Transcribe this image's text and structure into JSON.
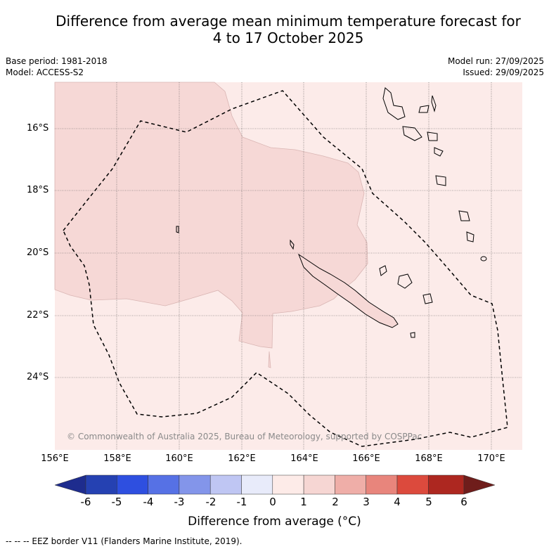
{
  "title_line1": "Difference from average mean minimum temperature forecast for",
  "title_line2": "4 to 17 October 2025",
  "meta": {
    "base_period": "Base period: 1981-2018",
    "model": "Model: ACCESS-S2",
    "model_run": "Model run: 27/09/2025",
    "issued": "Issued: 29/09/2025"
  },
  "map": {
    "y_ticks": [
      "16°S",
      "18°S",
      "20°S",
      "22°S",
      "24°S"
    ],
    "x_ticks": [
      "156°E",
      "158°E",
      "160°E",
      "162°E",
      "164°E",
      "166°E",
      "168°E",
      "170°E"
    ],
    "copyright": "© Commonwealth of Australia 2025, Bureau of Meteorology, supported by COSPPac",
    "colors": {
      "band_0_1": "#fcebe9",
      "band_1_2": "#f6d8d6",
      "outline": "#c9a6a6"
    }
  },
  "colorbar": {
    "labels": [
      "-6",
      "-5",
      "-4",
      "-3",
      "-2",
      "-1",
      "0",
      "1",
      "2",
      "3",
      "4",
      "5",
      "6"
    ],
    "colors": [
      "#1e2c8e",
      "#2541b2",
      "#2e4fe0",
      "#5671e5",
      "#8395ea",
      "#bfc6f3",
      "#e8ebfa",
      "#fdebe8",
      "#f6d6d3",
      "#efaea8",
      "#e8857c",
      "#dc4a3d",
      "#ad2720",
      "#6f1d1b"
    ],
    "title": "Difference from average (°C)"
  },
  "footer": "--  --  -- EEZ border V11 (Flanders Marine Institute, 2019)."
}
